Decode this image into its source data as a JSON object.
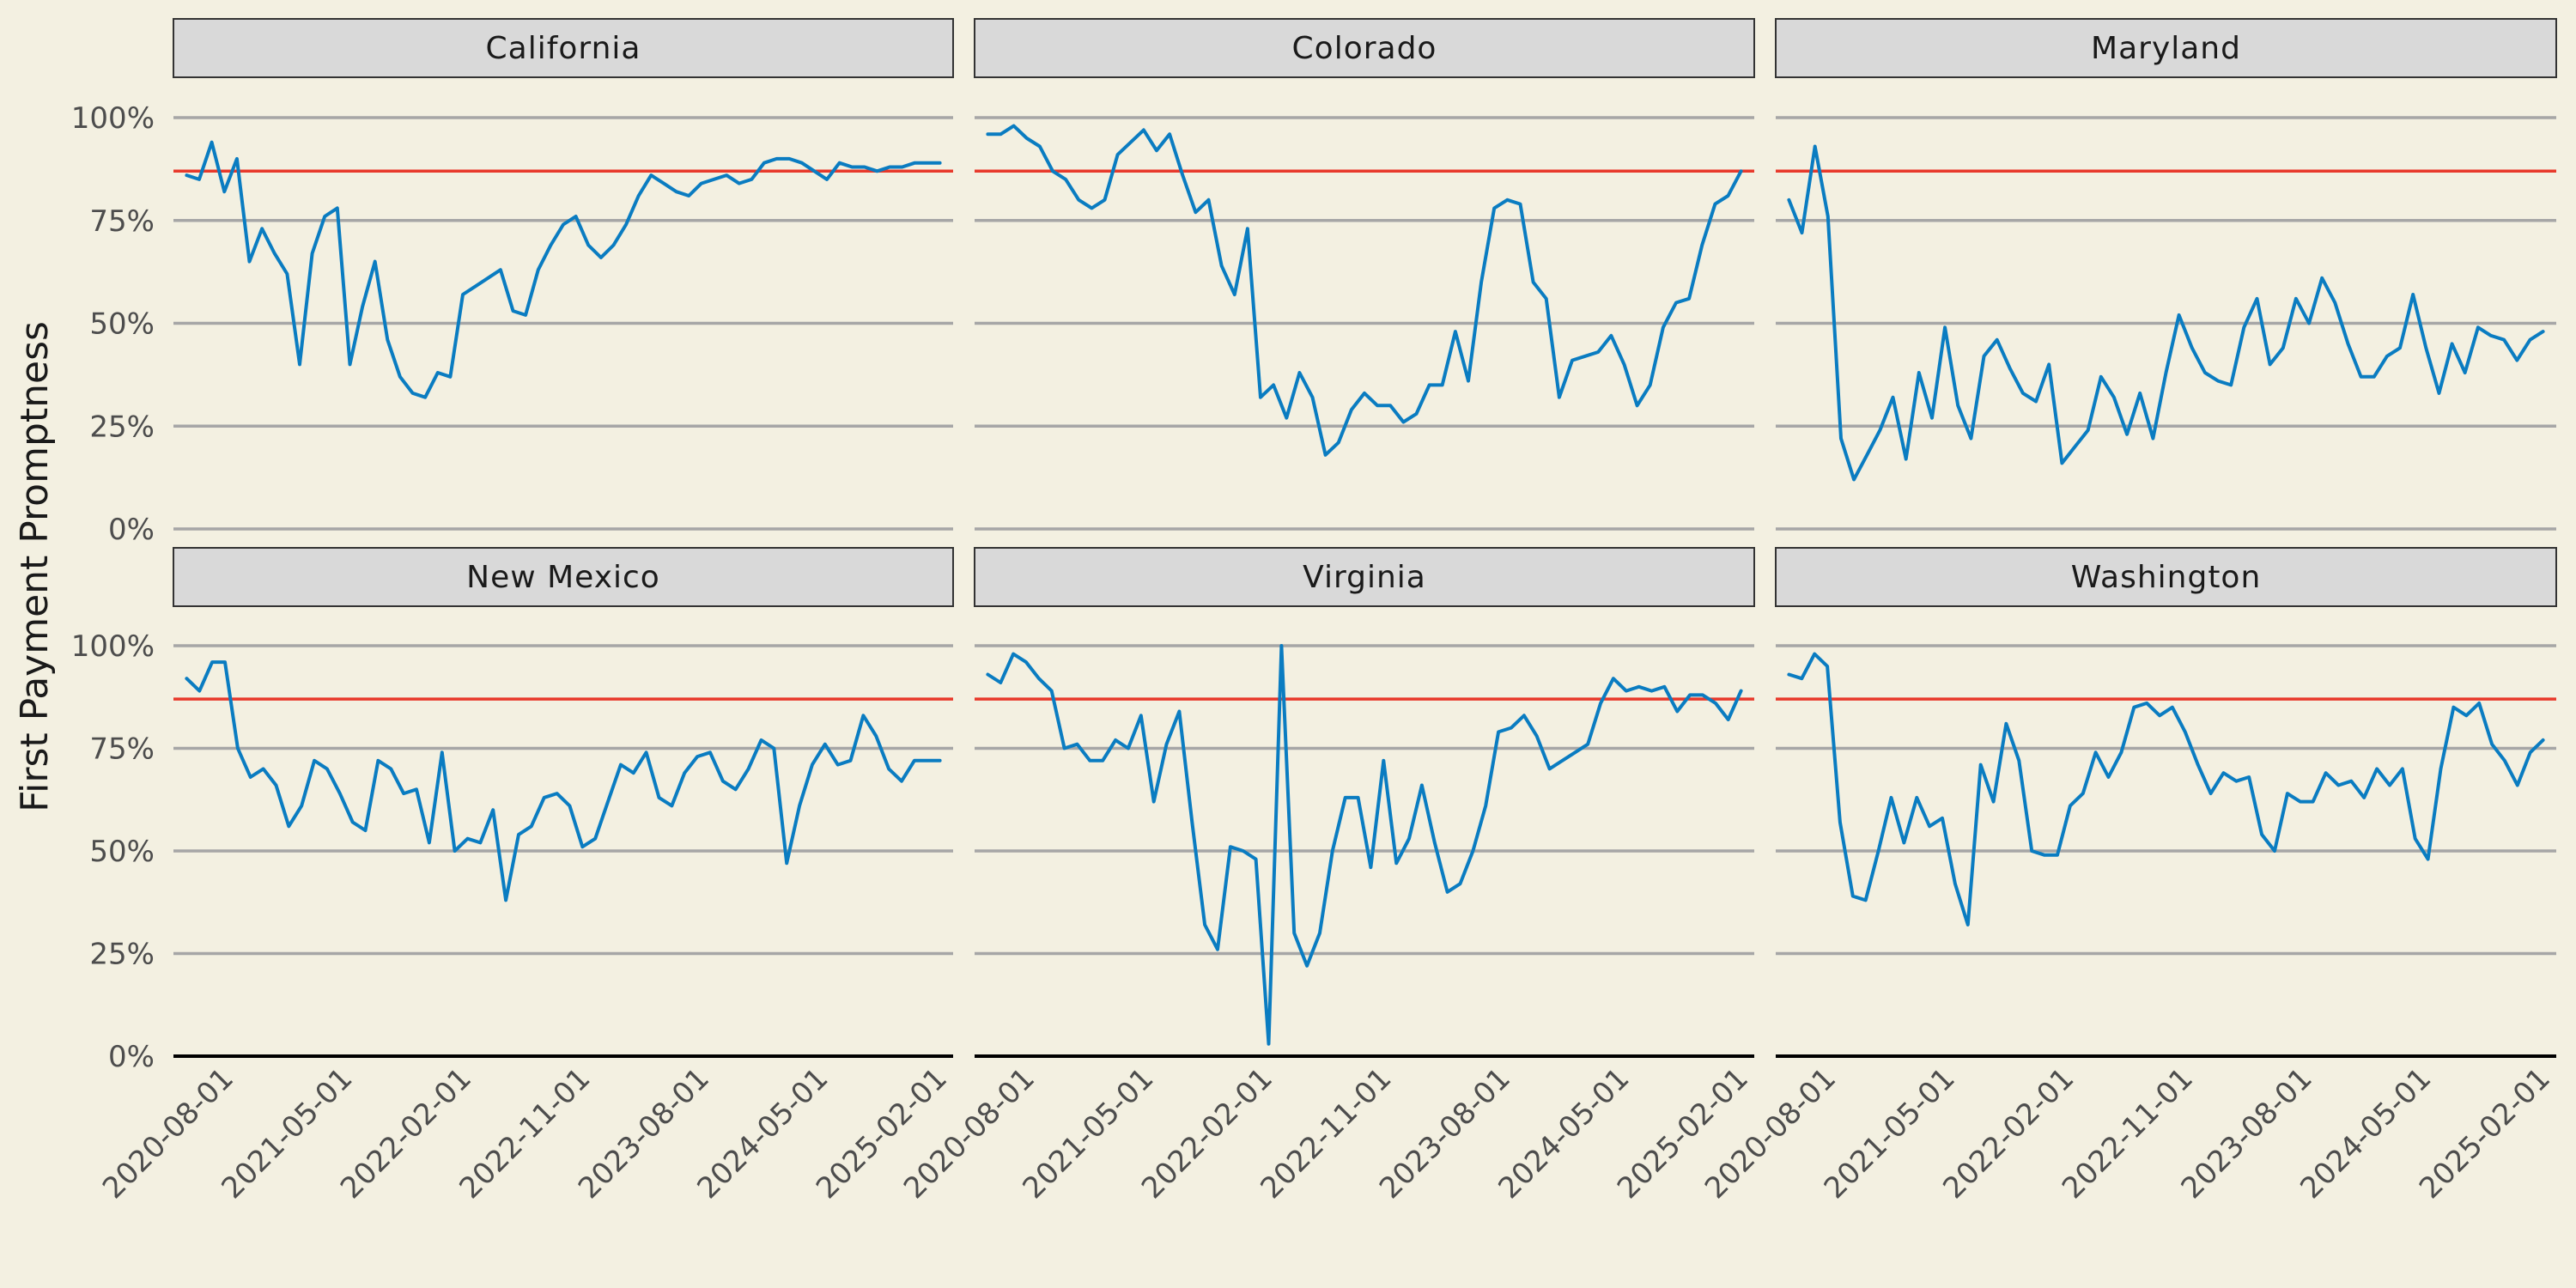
{
  "colors": {
    "background": "#f3f0e1",
    "series": "#0a7cc1",
    "reference_line": "#e8392b",
    "strip": "#d9d9d9"
  },
  "chart_data": {
    "type": "line",
    "title": "",
    "xlabel": "",
    "ylabel": "First Payment Promptness",
    "ylim": [
      0,
      100
    ],
    "yticks": [
      "0%",
      "25%",
      "50%",
      "75%",
      "100%"
    ],
    "xticks": [
      "2020-08-01",
      "2021-05-01",
      "2022-02-01",
      "2022-11-01",
      "2023-08-01",
      "2024-05-01",
      "2025-02-01"
    ],
    "x_range": [
      "2020-04-01",
      "2025-03-01"
    ],
    "reference_line": 87,
    "grid": "horizontal",
    "facets": [
      {
        "name": "California",
        "start": "2020-05-01",
        "end": "2025-02-01",
        "values": [
          86,
          85,
          94,
          82,
          90,
          65,
          73,
          67,
          62,
          40,
          67,
          76,
          78,
          40,
          54,
          65,
          46,
          37,
          33,
          32,
          38,
          37,
          57,
          59,
          61,
          63,
          53,
          52,
          63,
          69,
          74,
          76,
          69,
          66,
          69,
          74,
          81,
          86,
          84,
          82,
          81,
          84,
          85,
          86,
          84,
          85,
          89,
          90,
          90,
          89,
          87,
          85,
          89,
          88,
          88,
          87,
          88,
          88,
          89,
          89,
          89
        ]
      },
      {
        "name": "Colorado",
        "start": "2020-05-01",
        "end": "2025-02-01",
        "values": [
          96,
          96,
          98,
          95,
          93,
          87,
          85,
          80,
          78,
          80,
          91,
          94,
          97,
          92,
          96,
          86,
          77,
          80,
          64,
          57,
          73,
          32,
          35,
          27,
          38,
          32,
          18,
          21,
          29,
          33,
          30,
          30,
          26,
          28,
          35,
          35,
          48,
          36,
          60,
          78,
          80,
          79,
          60,
          56,
          32,
          41,
          42,
          43,
          47,
          40,
          30,
          35,
          49,
          55,
          56,
          69,
          79,
          81,
          87
        ]
      },
      {
        "name": "Maryland",
        "start": "2020-05-01",
        "end": "2025-02-01",
        "values": [
          80,
          72,
          93,
          76,
          22,
          12,
          18,
          24,
          32,
          17,
          38,
          27,
          49,
          30,
          22,
          42,
          46,
          39,
          33,
          31,
          40,
          16,
          20,
          24,
          37,
          32,
          23,
          33,
          22,
          38,
          52,
          44,
          38,
          36,
          35,
          49,
          56,
          40,
          44,
          56,
          50,
          61,
          55,
          45,
          37,
          37,
          42,
          44,
          57,
          44,
          33,
          45,
          38,
          49,
          47,
          46,
          41,
          46,
          48
        ]
      },
      {
        "name": "New Mexico",
        "start": "2020-05-01",
        "end": "2025-02-01",
        "values": [
          92,
          89,
          96,
          96,
          75,
          68,
          70,
          66,
          56,
          61,
          72,
          70,
          64,
          57,
          55,
          72,
          70,
          64,
          65,
          52,
          74,
          50,
          53,
          52,
          60,
          38,
          54,
          56,
          63,
          64,
          61,
          51,
          53,
          62,
          71,
          69,
          74,
          63,
          61,
          69,
          73,
          74,
          67,
          65,
          70,
          77,
          75,
          47,
          61,
          71,
          76,
          71,
          72,
          83,
          78,
          70,
          67,
          72,
          72,
          72
        ]
      },
      {
        "name": "Virginia",
        "start": "2020-05-01",
        "end": "2025-02-01",
        "values": [
          93,
          91,
          98,
          96,
          92,
          89,
          75,
          76,
          72,
          72,
          77,
          75,
          83,
          62,
          76,
          84,
          57,
          32,
          26,
          51,
          50,
          48,
          3,
          100,
          30,
          22,
          30,
          50,
          63,
          63,
          46,
          72,
          47,
          53,
          66,
          52,
          40,
          42,
          50,
          61,
          79,
          80,
          83,
          78,
          70,
          72,
          74,
          76,
          86,
          92,
          89,
          90,
          89,
          90,
          84,
          88,
          88,
          86,
          82,
          89
        ]
      },
      {
        "name": "Washington",
        "start": "2020-05-01",
        "end": "2025-02-01",
        "values": [
          93,
          92,
          98,
          95,
          57,
          39,
          38,
          50,
          63,
          52,
          63,
          56,
          58,
          42,
          32,
          71,
          62,
          81,
          72,
          50,
          49,
          49,
          61,
          64,
          74,
          68,
          74,
          85,
          86,
          83,
          85,
          79,
          71,
          64,
          69,
          67,
          68,
          54,
          50,
          64,
          62,
          62,
          69,
          66,
          67,
          63,
          70,
          66,
          70,
          53,
          48,
          70,
          85,
          83,
          86,
          76,
          72,
          66,
          74,
          77
        ]
      }
    ]
  }
}
